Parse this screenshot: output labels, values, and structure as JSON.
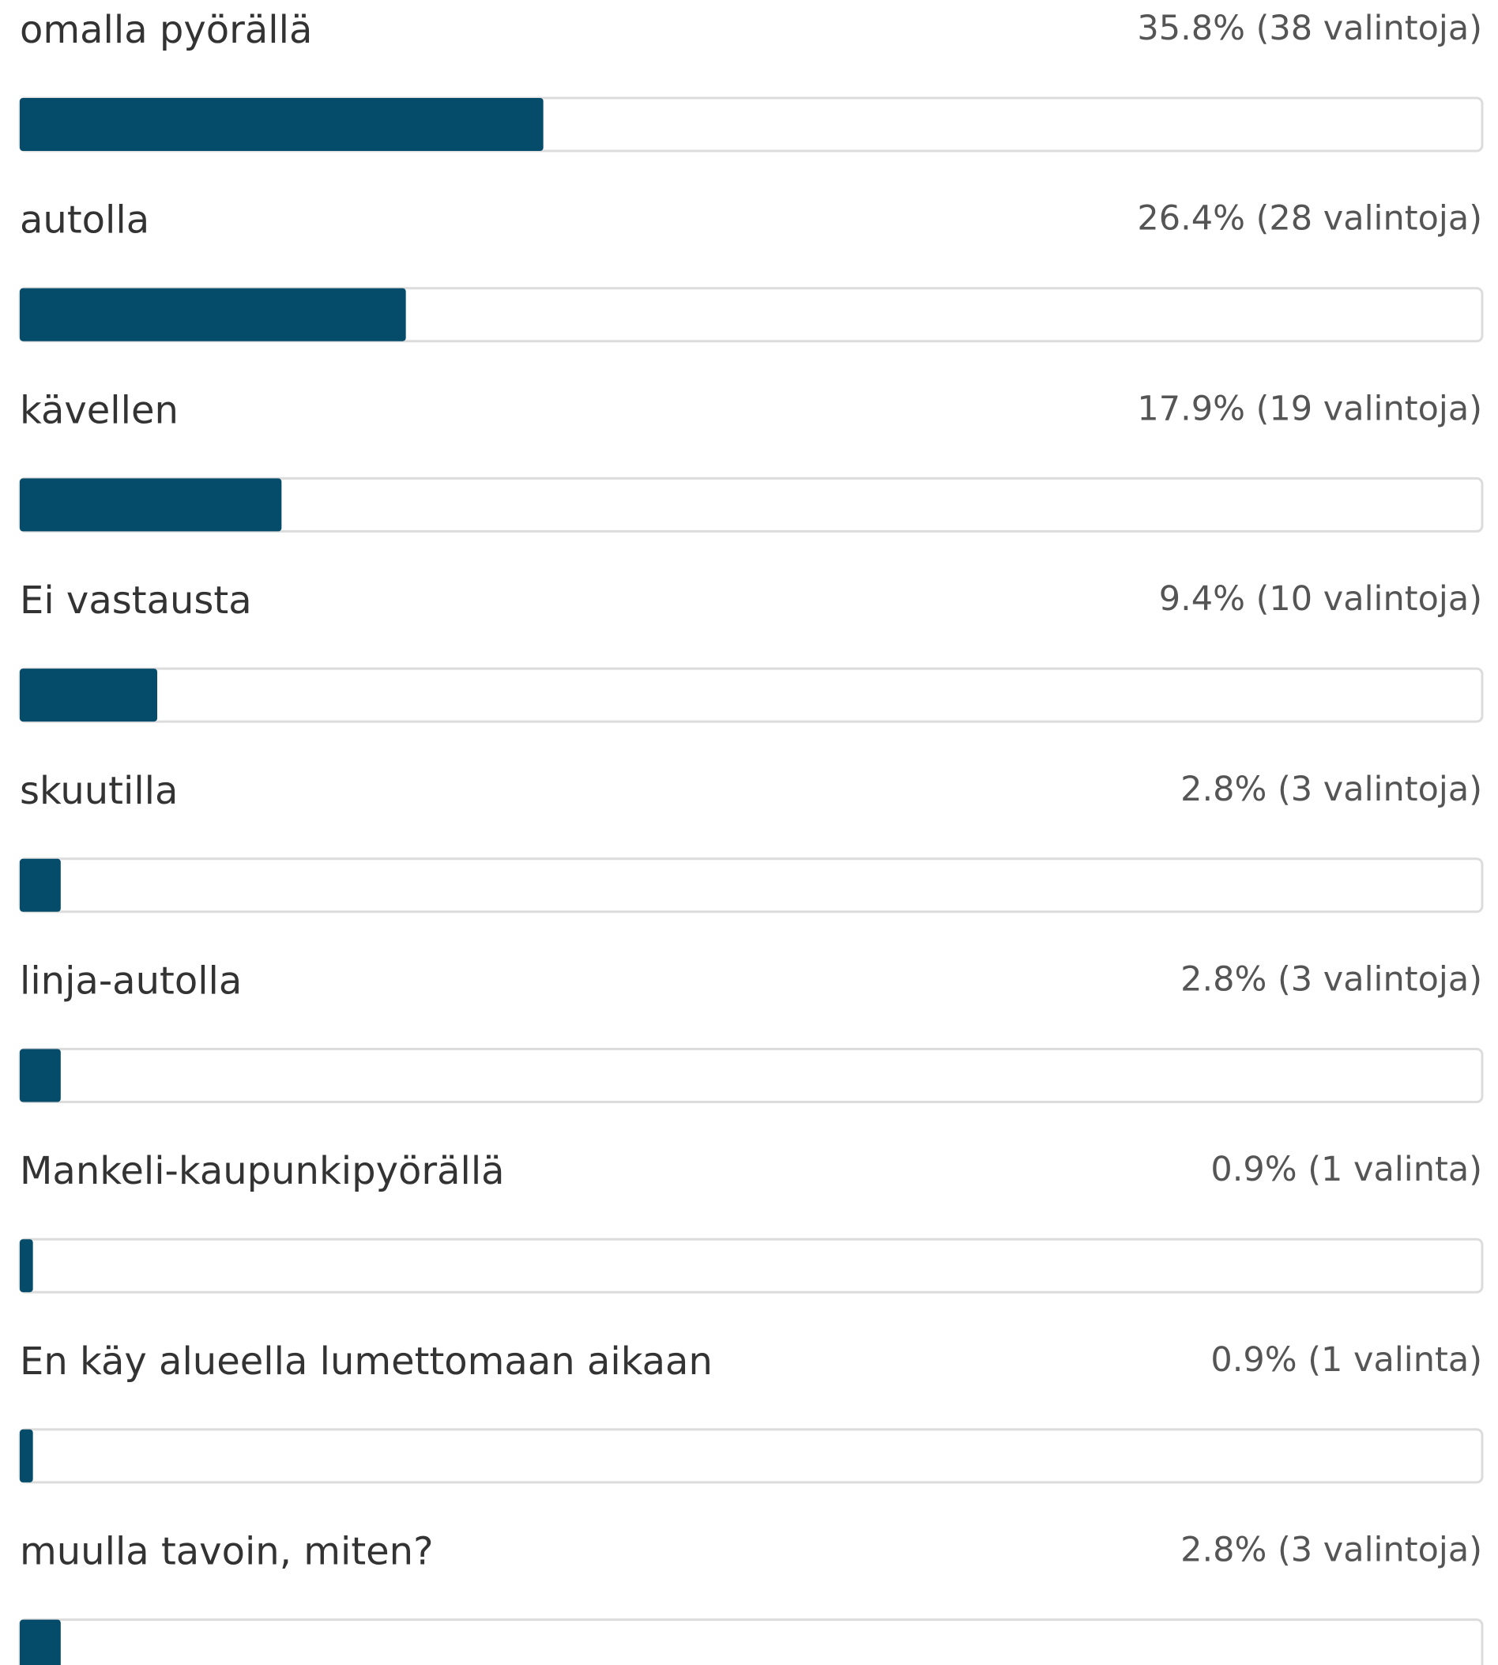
{
  "chart_data": {
    "type": "bar",
    "orientation": "horizontal",
    "color": "#054c6b",
    "categories": [
      "omalla pyörällä",
      "autolla",
      "kävellen",
      "Ei vastausta",
      "skuutilla",
      "linja-autolla",
      "Mankeli-kaupunkipyörällä",
      "En käy alueella lumettomaan aikaan",
      "muulla tavoin, miten?"
    ],
    "values": [
      35.8,
      26.4,
      17.9,
      9.4,
      2.8,
      2.8,
      0.9,
      0.9,
      2.8
    ],
    "value_labels": [
      "35.8% (38 valintoja)",
      "26.4% (28 valintoja)",
      "17.9% (19 valintoja)",
      "9.4% (10 valintoja)",
      "2.8% (3 valintoja)",
      "2.8% (3 valintoja)",
      "0.9% (1 valinta)",
      "0.9% (1 valinta)",
      "2.8% (3 valintoja)"
    ],
    "xlim": [
      0,
      100
    ]
  }
}
